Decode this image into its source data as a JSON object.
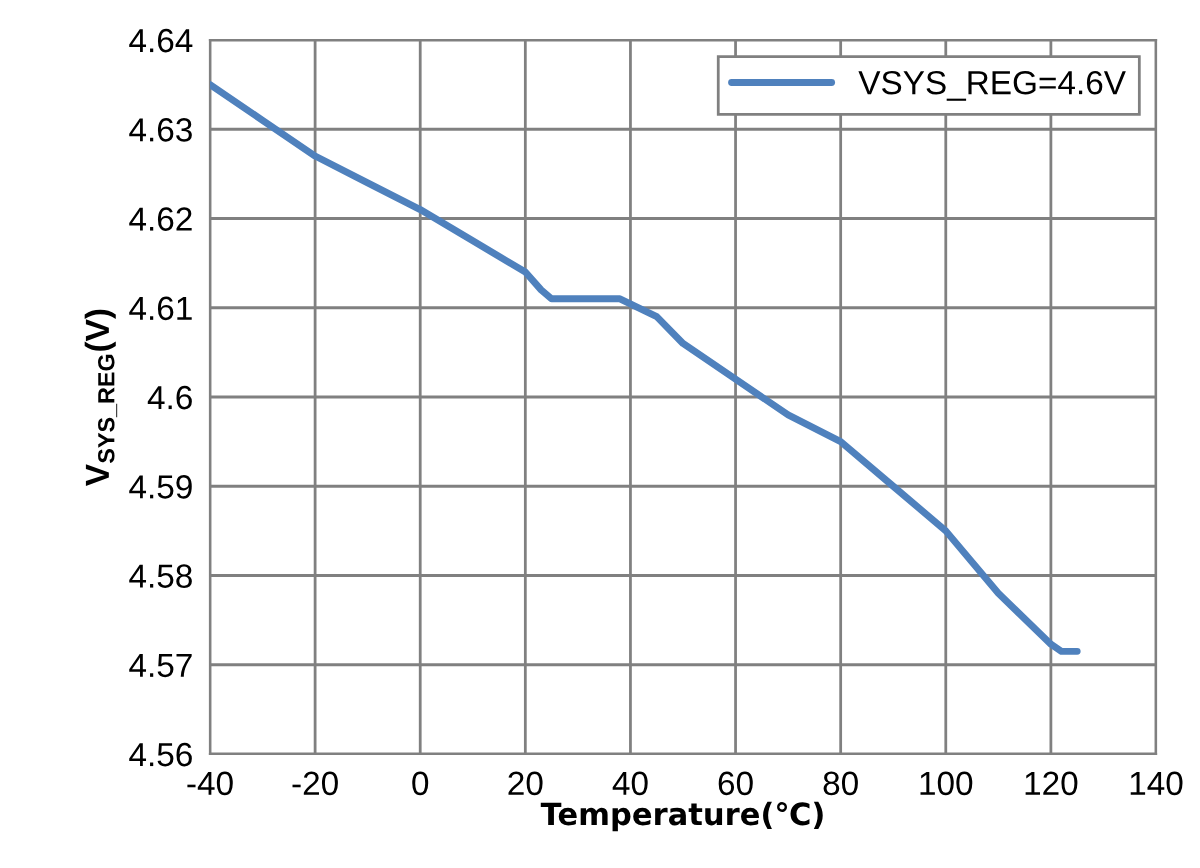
{
  "chart_data": {
    "type": "line",
    "xlabel": "Temperature(℃)",
    "ylabel": "V$_{SYS_REG}$(V)",
    "series": [
      {
        "name": "VSYS_REG=4.6V",
        "color": "#4f81bd",
        "x": [
          -40,
          -30,
          -20,
          -10,
          0,
          10,
          20,
          23,
          25,
          30,
          38,
          45,
          50,
          60,
          70,
          80,
          90,
          100,
          110,
          120,
          122,
          125
        ],
        "values": [
          4.635,
          4.631,
          4.627,
          4.624,
          4.621,
          4.6175,
          4.614,
          4.612,
          4.611,
          4.611,
          4.611,
          4.609,
          4.606,
          4.602,
          4.598,
          4.595,
          4.59,
          4.585,
          4.578,
          4.5723,
          4.5715,
          4.5715
        ]
      }
    ],
    "xlim": [
      -40,
      140
    ],
    "xticks": [
      -40,
      -20,
      0,
      20,
      40,
      60,
      80,
      100,
      120,
      140
    ],
    "ylim": [
      4.56,
      4.64
    ],
    "yticks": [
      4.56,
      4.57,
      4.58,
      4.59,
      4.6,
      4.61,
      4.62,
      4.63,
      4.64
    ],
    "grid": true,
    "legend": "top right",
    "marker": "none",
    "line_style": "solid"
  }
}
